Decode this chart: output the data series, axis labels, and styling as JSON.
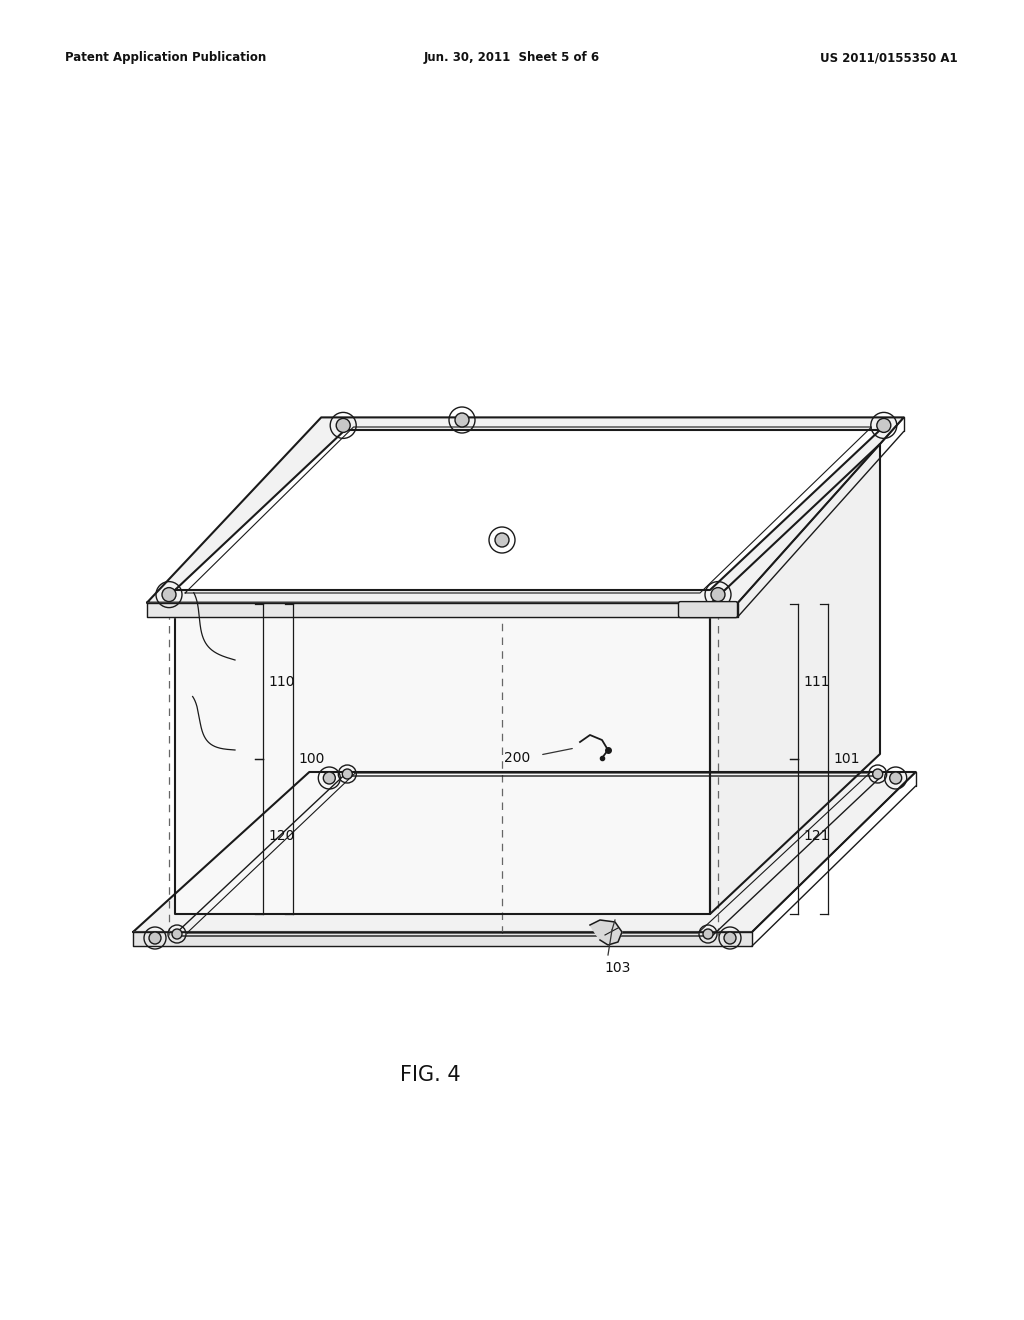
{
  "background_color": "#ffffff",
  "header_left": "Patent Application Publication",
  "header_mid": "Jun. 30, 2011  Sheet 5 of 6",
  "header_right": "US 2011/0155350 A1",
  "caption": "FIG. 4",
  "line_color": "#1a1a1a",
  "dashed_color": "#666666",
  "fig_width": 10.24,
  "fig_height": 13.2,
  "label_fontsize": 10,
  "header_fontsize": 8.5,
  "caption_fontsize": 15
}
